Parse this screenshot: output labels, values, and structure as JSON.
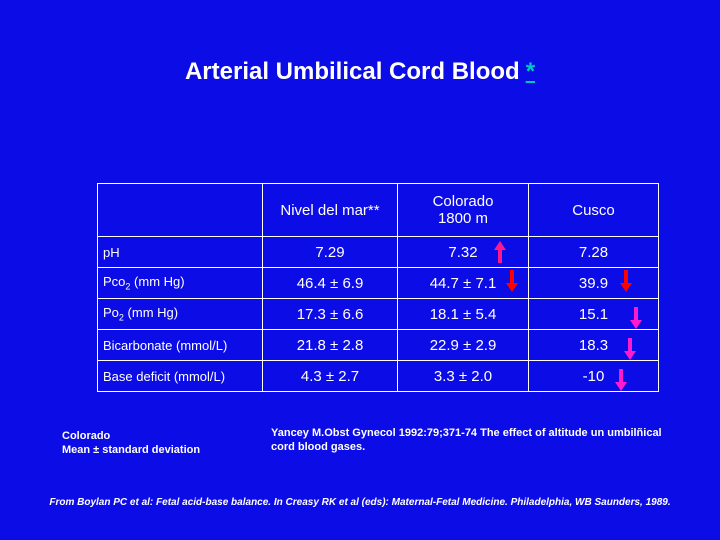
{
  "title": "Arterial  Umbilical Cord Blood",
  "title_star": "*",
  "table": {
    "headers": [
      "",
      "Nivel del mar**",
      "Colorado",
      "1800 m",
      "Cusco"
    ],
    "rows": [
      {
        "label": "pH",
        "values": [
          "7.29",
          "7.32",
          "7.28"
        ]
      },
      {
        "label_main": "Pco",
        "label_sub": "2",
        "label_rest": " (mm Hg)",
        "values": [
          "46.4 ± 6.9",
          "44.7 ± 7.1",
          "39.9"
        ]
      },
      {
        "label_main": "Po",
        "label_sub": "2",
        "label_rest": " (mm Hg)",
        "values": [
          "17.3 ± 6.6",
          "18.1 ± 5.4",
          "15.1"
        ]
      },
      {
        "label": "Bicarbonate (mmol/L)",
        "values": [
          "21.8 ± 2.8",
          "22.9 ± 2.9",
          "18.3"
        ]
      },
      {
        "label": "Base deficit (mmol/L)",
        "values": [
          "4.3 ± 2.7",
          "3.3 ± 2.0",
          "-10"
        ]
      }
    ]
  },
  "arrows": {
    "up_color": "#ff1a8c",
    "down_red": "#ff0000",
    "down_magenta": "#ff1acd",
    "icons": [
      "arrow-up-icon",
      "arrow-down-icon"
    ]
  },
  "notes": {
    "left_line1": "Colorado",
    "left_line2": "Mean ± standard deviation",
    "right": "Yancey M.Obst Gynecol 1992:79;371-74 The effect of altitude un umbilñical cord blood gases."
  },
  "citation": "From Boylan PC et al: Fetal acid-base balance. In Creasy RK et al (eds): Maternal-Fetal Medicine. Philadelphia, WB Saunders, 1989.",
  "colors": {
    "background": "#0c0ce6",
    "text": "#ffffff",
    "link_star": "#00c8c8"
  }
}
